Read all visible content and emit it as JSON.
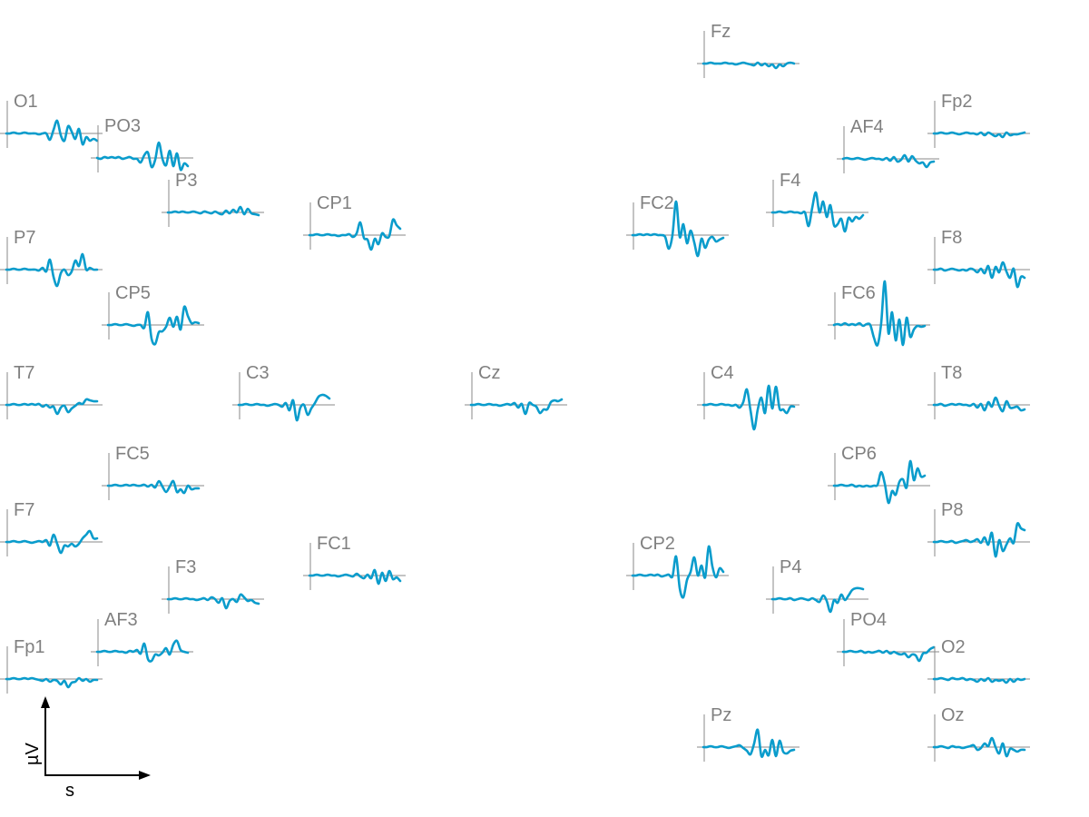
{
  "chart_data": {
    "type": "line",
    "layout": "topographic",
    "color": "#0a9ccc",
    "scale_bar": {
      "xlabel": "s",
      "ylabel": "µV"
    },
    "channels": [
      {
        "name": "Fz",
        "values": [
          0,
          0,
          1,
          0,
          0,
          0,
          1,
          0,
          0,
          -1,
          0,
          1,
          0,
          -1,
          -2,
          1,
          -2,
          0,
          -3,
          -1,
          -5,
          -1,
          -3,
          0,
          1,
          0
        ]
      },
      {
        "name": "O1",
        "values": [
          0,
          0,
          1,
          0,
          0,
          1,
          0,
          0,
          0,
          -1,
          0,
          0,
          -7,
          4,
          14,
          -2,
          -8,
          8,
          2,
          -6,
          5,
          -12,
          -4,
          -8,
          -6,
          -8
        ]
      },
      {
        "name": "PO3",
        "values": [
          0,
          -1,
          1,
          0,
          1,
          0,
          1,
          -1,
          0,
          1,
          -1,
          -1,
          -5,
          3,
          6,
          -10,
          -2,
          17,
          -1,
          -8,
          8,
          -9,
          5,
          -13,
          -6,
          -9
        ]
      },
      {
        "name": "Fp2",
        "values": [
          0,
          0,
          1,
          0,
          0,
          1,
          0,
          -1,
          0,
          1,
          0,
          0,
          -1,
          1,
          -2,
          1,
          -1,
          -3,
          -1,
          -4,
          1,
          -2,
          -1,
          -1,
          0,
          1
        ]
      },
      {
        "name": "AF4",
        "values": [
          0,
          1,
          0,
          0,
          1,
          0,
          -1,
          0,
          1,
          0,
          0,
          -1,
          1,
          -2,
          2,
          -3,
          -1,
          4,
          -3,
          3,
          -2,
          -5,
          -4,
          -9,
          -4,
          -3
        ]
      },
      {
        "name": "P3",
        "values": [
          0,
          0,
          1,
          0,
          1,
          0,
          0,
          1,
          0,
          -1,
          1,
          0,
          -1,
          1,
          -1,
          -2,
          2,
          -1,
          3,
          0,
          6,
          -2,
          4,
          -1,
          -2,
          -3
        ]
      },
      {
        "name": "CP1",
        "values": [
          0,
          0,
          1,
          0,
          0,
          1,
          0,
          0,
          -1,
          0,
          0,
          1,
          -2,
          2,
          14,
          -3,
          -5,
          -16,
          -4,
          -10,
          2,
          -2,
          -1,
          17,
          11,
          7
        ]
      },
      {
        "name": "FC2",
        "values": [
          0,
          0,
          1,
          0,
          1,
          0,
          1,
          0,
          0,
          -2,
          -15,
          0,
          37,
          -2,
          12,
          -9,
          5,
          -8,
          -23,
          -4,
          -14,
          -5,
          -2,
          -7,
          -5,
          -3
        ]
      },
      {
        "name": "F4",
        "values": [
          0,
          0,
          1,
          0,
          0,
          1,
          0,
          0,
          -1,
          0,
          -15,
          5,
          22,
          0,
          12,
          -5,
          8,
          -14,
          -13,
          -7,
          -21,
          -6,
          -10,
          -5,
          -7,
          -3
        ]
      },
      {
        "name": "P7",
        "values": [
          0,
          0,
          1,
          0,
          0,
          1,
          0,
          0,
          0,
          -1,
          2,
          -2,
          11,
          -8,
          -18,
          -4,
          0,
          -6,
          -2,
          10,
          4,
          17,
          0,
          2,
          0,
          0
        ]
      },
      {
        "name": "F8",
        "values": [
          0,
          0,
          1,
          -1,
          0,
          1,
          0,
          -1,
          0,
          -1,
          1,
          0,
          -3,
          1,
          -4,
          4,
          -9,
          3,
          -3,
          8,
          -2,
          -9,
          1,
          -19,
          -8,
          -9
        ]
      },
      {
        "name": "CP5",
        "values": [
          0,
          0,
          1,
          0,
          0,
          1,
          0,
          -1,
          0,
          0,
          -3,
          14,
          -15,
          -21,
          -8,
          -7,
          -2,
          8,
          -2,
          9,
          -5,
          20,
          10,
          2,
          3,
          2
        ]
      },
      {
        "name": "FC6",
        "values": [
          0,
          1,
          0,
          2,
          0,
          1,
          0,
          2,
          -1,
          1,
          0,
          -14,
          -22,
          2,
          48,
          -9,
          14,
          -17,
          6,
          -22,
          8,
          -13,
          -5,
          -1,
          -2,
          -1
        ]
      },
      {
        "name": "T7",
        "values": [
          0,
          0,
          1,
          0,
          0,
          1,
          0,
          1,
          0,
          1,
          -2,
          0,
          -3,
          -2,
          -10,
          -3,
          -1,
          -8,
          -4,
          -1,
          2,
          1,
          6,
          5,
          4,
          4
        ]
      },
      {
        "name": "C3",
        "values": [
          0,
          0,
          1,
          0,
          0,
          1,
          0,
          0,
          -1,
          0,
          1,
          0,
          -2,
          2,
          -6,
          5,
          -17,
          -3,
          0,
          -11,
          -4,
          2,
          9,
          11,
          10,
          7
        ]
      },
      {
        "name": "Cz",
        "values": [
          0,
          0,
          1,
          0,
          0,
          1,
          0,
          0,
          -1,
          0,
          1,
          0,
          2,
          -3,
          1,
          -10,
          2,
          0,
          -2,
          -9,
          -5,
          -5,
          3,
          5,
          4,
          6
        ]
      },
      {
        "name": "C4",
        "values": [
          0,
          0,
          1,
          0,
          0,
          1,
          0,
          0,
          -1,
          0,
          -3,
          3,
          17,
          -6,
          -27,
          -5,
          8,
          -9,
          21,
          -4,
          20,
          -4,
          -5,
          -9,
          -2,
          -2
        ]
      },
      {
        "name": "T8",
        "values": [
          0,
          0,
          1,
          -1,
          0,
          1,
          0,
          1,
          0,
          0,
          -1,
          1,
          -3,
          1,
          -6,
          3,
          -2,
          8,
          -1,
          -7,
          4,
          -3,
          -3,
          -2,
          -6,
          -5
        ]
      },
      {
        "name": "FC5",
        "values": [
          0,
          0,
          1,
          0,
          0,
          1,
          0,
          1,
          0,
          0,
          1,
          -1,
          1,
          -2,
          5,
          -1,
          -7,
          -1,
          5,
          -7,
          -4,
          -8,
          0,
          -4,
          -3,
          -3
        ]
      },
      {
        "name": "CP6",
        "values": [
          0,
          0,
          1,
          0,
          0,
          1,
          -1,
          0,
          -1,
          0,
          -1,
          0,
          1,
          15,
          2,
          -19,
          -6,
          -10,
          4,
          7,
          -2,
          27,
          6,
          19,
          10,
          11
        ]
      },
      {
        "name": "F7",
        "values": [
          0,
          0,
          1,
          0,
          0,
          1,
          0,
          -1,
          0,
          1,
          0,
          2,
          -4,
          8,
          -2,
          -12,
          -4,
          -5,
          -2,
          -5,
          -2,
          4,
          8,
          12,
          4,
          4
        ]
      },
      {
        "name": "P8",
        "values": [
          0,
          0,
          1,
          0,
          0,
          1,
          -1,
          0,
          1,
          2,
          0,
          1,
          3,
          -1,
          5,
          -3,
          10,
          -16,
          2,
          -10,
          -3,
          4,
          -1,
          20,
          15,
          13
        ]
      },
      {
        "name": "FC1",
        "values": [
          0,
          0,
          1,
          0,
          0,
          1,
          0,
          0,
          -1,
          0,
          1,
          0,
          -1,
          2,
          -1,
          -3,
          1,
          -3,
          6,
          -9,
          3,
          -6,
          5,
          -4,
          -2,
          -6
        ]
      },
      {
        "name": "CP2",
        "values": [
          0,
          0,
          1,
          0,
          0,
          1,
          0,
          1,
          -1,
          0,
          1,
          -1,
          21,
          -14,
          -24,
          -5,
          4,
          20,
          0,
          11,
          -2,
          32,
          10,
          -2,
          8,
          4
        ]
      },
      {
        "name": "F3",
        "values": [
          0,
          0,
          1,
          0,
          0,
          1,
          0,
          0,
          -1,
          0,
          1,
          -1,
          2,
          0,
          -4,
          1,
          -10,
          -2,
          0,
          -3,
          5,
          2,
          -2,
          -1,
          -4,
          -5
        ]
      },
      {
        "name": "P4",
        "values": [
          0,
          0,
          1,
          0,
          0,
          1,
          -1,
          0,
          1,
          0,
          -1,
          1,
          -1,
          -3,
          4,
          -2,
          -14,
          -1,
          -4,
          5,
          -1,
          4,
          10,
          12,
          12,
          11
        ]
      },
      {
        "name": "AF3",
        "values": [
          0,
          0,
          1,
          0,
          0,
          1,
          0,
          0,
          -1,
          1,
          0,
          2,
          -2,
          9,
          -8,
          -10,
          -3,
          -4,
          -1,
          4,
          -3,
          8,
          12,
          2,
          0,
          -1
        ]
      },
      {
        "name": "PO4",
        "values": [
          0,
          0,
          1,
          0,
          0,
          1,
          -1,
          0,
          -1,
          0,
          1,
          -1,
          1,
          -2,
          0,
          -2,
          -3,
          -2,
          -6,
          -3,
          -4,
          -10,
          -2,
          -1,
          3,
          5
        ]
      },
      {
        "name": "Fp1",
        "values": [
          0,
          0,
          1,
          0,
          0,
          1,
          0,
          1,
          0,
          -1,
          -2,
          0,
          -3,
          -1,
          -2,
          -6,
          -2,
          -9,
          -4,
          -3,
          1,
          -2,
          0,
          -3,
          -1,
          -1
        ]
      },
      {
        "name": "O2",
        "values": [
          0,
          0,
          1,
          0,
          -1,
          1,
          0,
          0,
          1,
          -1,
          0,
          -1,
          -3,
          0,
          -2,
          1,
          -3,
          -1,
          -2,
          -1,
          -4,
          0,
          -3,
          0,
          -1,
          0
        ]
      },
      {
        "name": "Pz",
        "values": [
          0,
          0,
          1,
          0,
          0,
          1,
          0,
          -1,
          0,
          1,
          2,
          -1,
          -4,
          -8,
          4,
          19,
          -10,
          -3,
          -9,
          8,
          -10,
          7,
          -5,
          -7,
          -4,
          -3
        ]
      },
      {
        "name": "Oz",
        "values": [
          0,
          0,
          1,
          0,
          -1,
          1,
          0,
          0,
          -1,
          0,
          1,
          2,
          -3,
          -1,
          4,
          1,
          10,
          0,
          -7,
          4,
          -10,
          -2,
          -3,
          -5,
          -3,
          -3
        ]
      }
    ]
  }
}
